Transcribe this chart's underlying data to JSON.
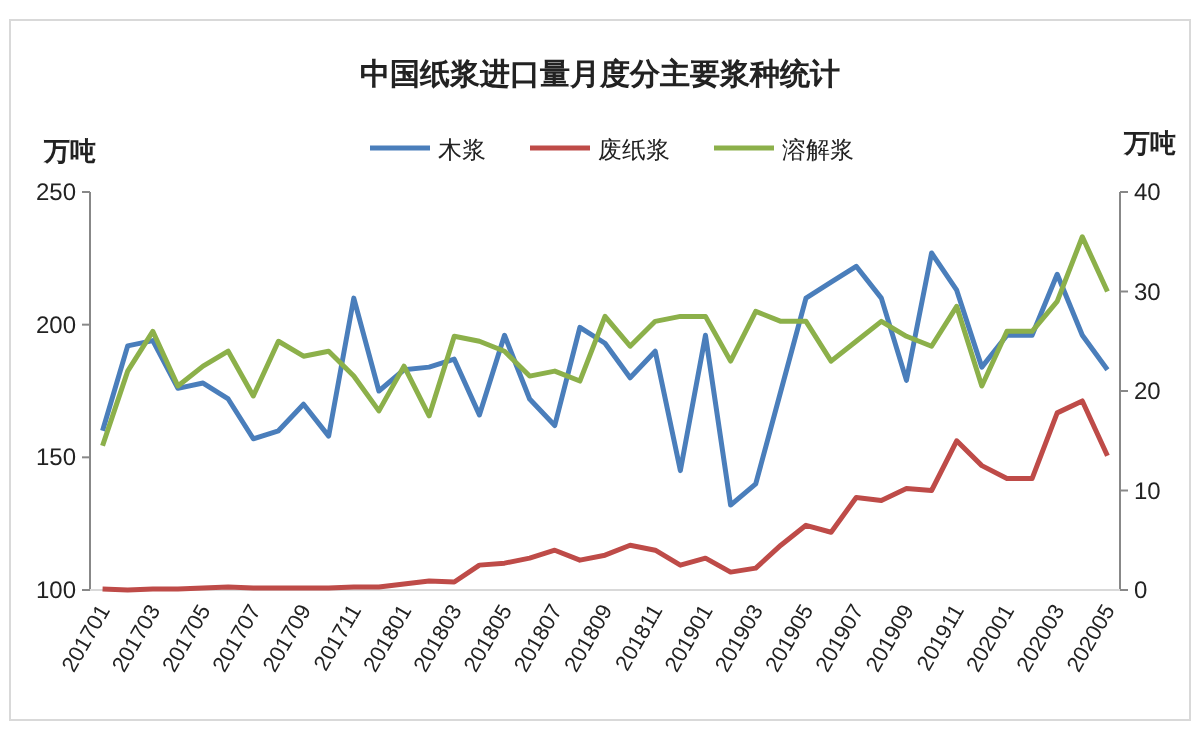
{
  "chart_data": {
    "type": "line",
    "title": "中国纸浆进口量月度分主要浆种统计",
    "ylabel": "万吨",
    "y2label": "万吨",
    "categories": [
      "201701",
      null,
      "201703",
      null,
      "201705",
      null,
      "201707",
      null,
      "201709",
      null,
      "201711",
      null,
      "201801",
      null,
      "201803",
      null,
      "201805",
      null,
      "201807",
      null,
      "201809",
      null,
      "201811",
      null,
      "201901",
      null,
      "201903",
      null,
      "201905",
      null,
      "201907",
      null,
      "201909",
      null,
      "201911",
      null,
      "202001",
      null,
      "202003",
      null,
      "202005"
    ],
    "series": [
      {
        "name": "木浆",
        "color": "#4a7ebb",
        "values": [
          160,
          192,
          194,
          176,
          178,
          172,
          157,
          160,
          170,
          158,
          210,
          175,
          183,
          184,
          187,
          166,
          196,
          172,
          162,
          199,
          193,
          180,
          190,
          145,
          196,
          132,
          140,
          175,
          210,
          216,
          222,
          210,
          179,
          227,
          213,
          184,
          196,
          196,
          219,
          196,
          183
        ]
      },
      {
        "name": "废纸浆",
        "color": "#be4b48",
        "axis": "y2",
        "values": [
          0.1,
          0,
          0.1,
          0.1,
          0.2,
          0.3,
          0.2,
          0.2,
          0.2,
          0.2,
          0.3,
          0.3,
          0.6,
          0.9,
          0.8,
          2.5,
          2.7,
          3.2,
          4.0,
          3.0,
          3.5,
          4.5,
          4.0,
          2.5,
          3.2,
          1.8,
          2.2,
          4.5,
          6.5,
          5.8,
          9.3,
          9.0,
          10.2,
          10.0,
          15,
          12.5,
          11.2,
          11.2,
          17.8,
          19,
          13.5
        ]
      },
      {
        "name": "溶解浆",
        "color": "#8cb04a",
        "axis": "y2",
        "values": [
          14.5,
          22,
          26,
          20.5,
          22.5,
          24,
          19.5,
          25,
          23.5,
          24,
          21.5,
          18,
          22.5,
          17.5,
          25.5,
          25,
          24,
          21.5,
          22,
          21,
          27.5,
          24.5,
          27,
          27.5,
          27.5,
          23,
          28,
          27,
          27,
          23,
          25,
          27,
          25.5,
          24.5,
          28.5,
          20.5,
          26,
          26,
          29,
          35.5,
          30
        ]
      }
    ],
    "ylim": [
      100,
      250
    ],
    "yticks": [
      100,
      150,
      200,
      250
    ],
    "y2lim": [
      0,
      40
    ],
    "y2ticks": [
      0,
      10,
      20,
      30,
      40
    ],
    "legend": "top",
    "grid": false
  }
}
